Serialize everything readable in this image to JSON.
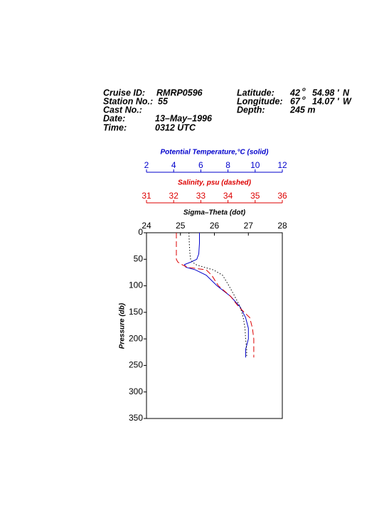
{
  "header": {
    "cruise_label": "Cruise ID:",
    "cruise": "RMRP0596",
    "station_label": "Station No.:",
    "station": "55",
    "cast_label": "Cast No.:",
    "date_label": "Date:",
    "date": "13–May–1996",
    "time_label": "Time:",
    "time": "0312 UTC",
    "lat_label": "Latitude:",
    "lat": {
      "deg": "42",
      "mark": "o",
      "min": "54.98 '",
      "hem": "N"
    },
    "lon_label": "Longitude:",
    "lon": {
      "deg": "67",
      "mark": "o",
      "min": "14.07 '",
      "hem": "W"
    },
    "depth_label": "Depth:",
    "depth": "245 m"
  },
  "chart_data": {
    "type": "profile",
    "ylabel": "Pressure (db)",
    "ylim": [
      0,
      350
    ],
    "yticks": [
      0,
      50,
      100,
      150,
      200,
      250,
      300,
      350
    ],
    "y_inverted": true,
    "pressure": [
      0,
      20,
      40,
      50,
      55,
      60,
      65,
      70,
      80,
      100,
      120,
      140,
      160,
      180,
      200,
      220,
      235
    ],
    "x_axes": [
      {
        "title": "Potential Temperature,°C (solid)",
        "color": "#0000cc",
        "dash": "solid",
        "xlim": [
          2,
          12
        ],
        "xticks": [
          2,
          4,
          6,
          8,
          10,
          12
        ],
        "values": [
          5.9,
          5.9,
          5.85,
          5.7,
          5.3,
          4.8,
          4.9,
          5.6,
          6.4,
          7.2,
          8.2,
          8.9,
          9.3,
          9.5,
          9.5,
          9.3,
          9.3
        ]
      },
      {
        "title": "Salinity, psu  (dashed)",
        "color": "#dd0000",
        "dash": "dashed",
        "xlim": [
          31,
          36
        ],
        "xticks": [
          31,
          32,
          33,
          34,
          35,
          36
        ],
        "values": [
          32.1,
          32.1,
          32.1,
          32.1,
          32.15,
          32.3,
          32.5,
          33.2,
          33.4,
          33.65,
          34.1,
          34.4,
          34.8,
          34.9,
          34.95,
          34.95,
          34.95
        ]
      },
      {
        "title": "Sigma–Theta (dot)",
        "color": "#000000",
        "dash": "dotted",
        "xlim": [
          24,
          28
        ],
        "xticks": [
          24,
          25,
          26,
          27,
          28
        ],
        "values": [
          25.25,
          25.26,
          25.28,
          25.3,
          25.35,
          25.45,
          25.7,
          25.97,
          26.24,
          26.43,
          26.6,
          26.76,
          26.85,
          26.9,
          26.92,
          26.95,
          26.95
        ]
      }
    ]
  }
}
